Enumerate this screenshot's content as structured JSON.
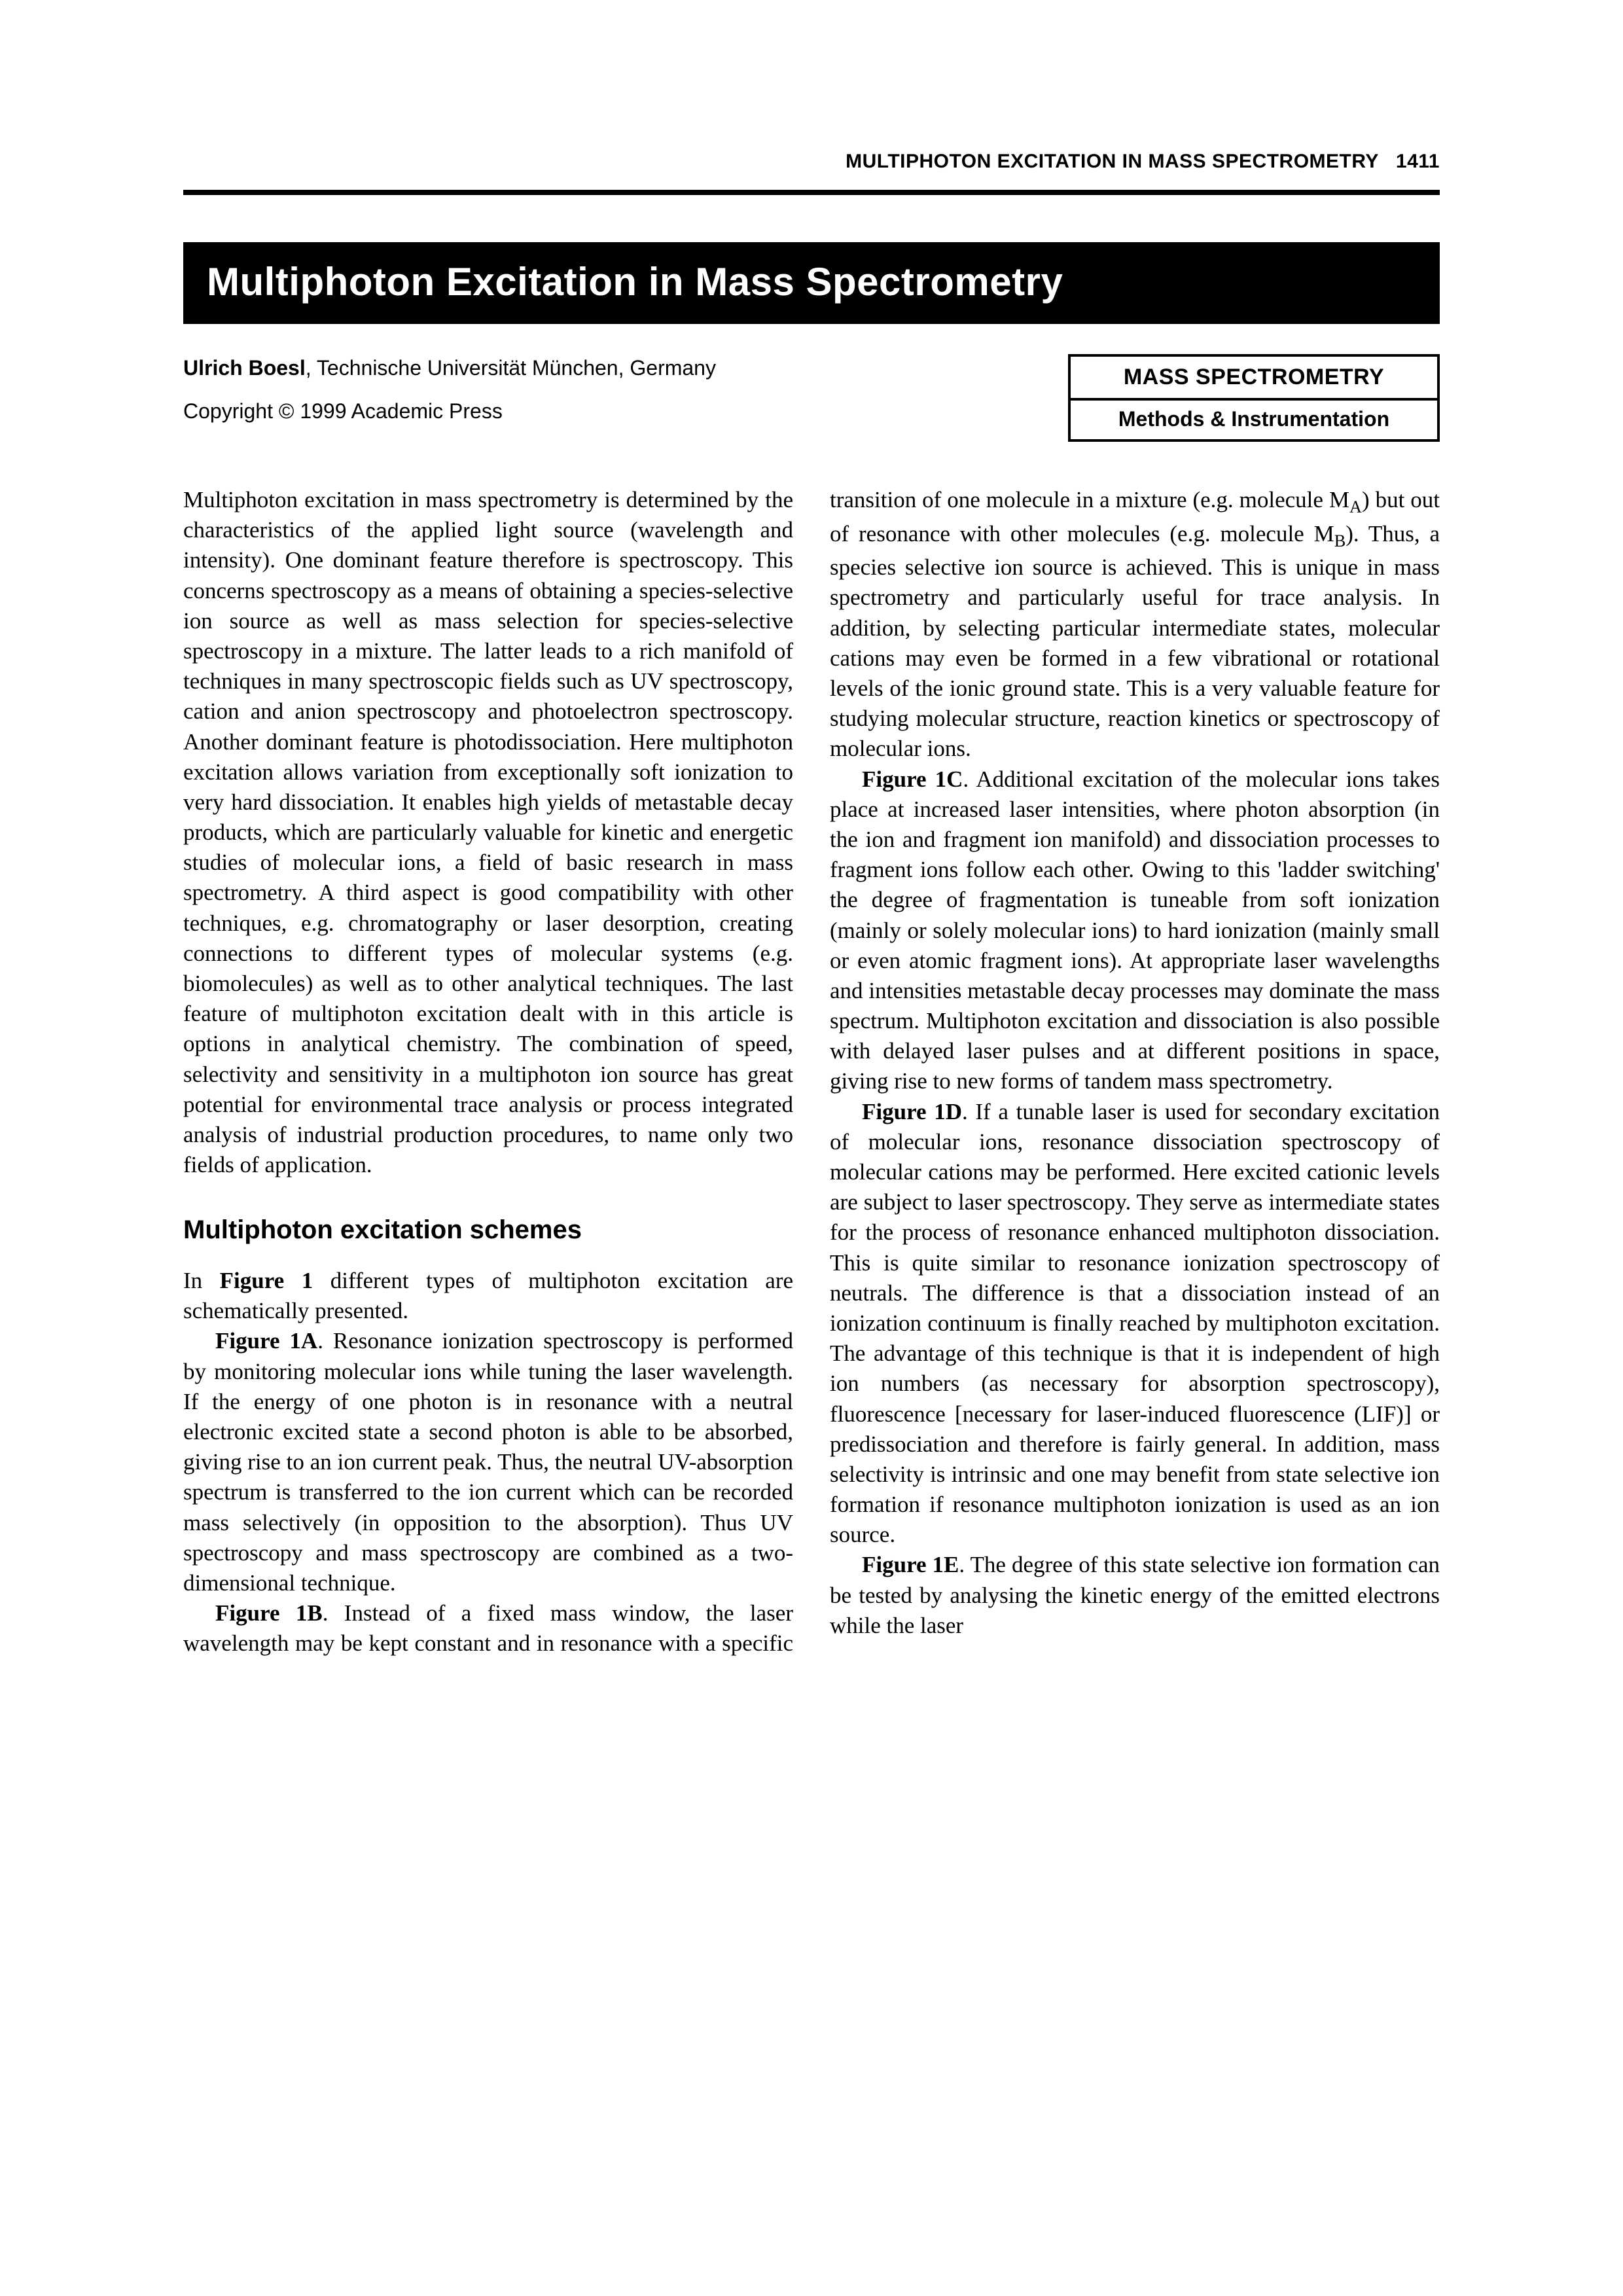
{
  "header": {
    "running": "MULTIPHOTON EXCITATION IN MASS SPECTROMETRY",
    "page_number": "1411"
  },
  "title": "Multiphoton Excitation in Mass Spectrometry",
  "author": {
    "name": "Ulrich Boesl",
    "affiliation": ", Technische Universität München, Germany"
  },
  "copyright": "Copyright © 1999 Academic Press",
  "category": {
    "top": "MASS SPECTROMETRY",
    "bottom": "Methods & Instrumentation"
  },
  "body": {
    "intro": "Multiphoton excitation in mass spectrometry is determined by the characteristics of the applied light source (wavelength and intensity). One dominant feature therefore is spectroscopy. This concerns spectroscopy as a means of obtaining a species-selective ion source as well as mass selection for species-selective spectroscopy in a mixture. The latter leads to a rich manifold of techniques in many spectroscopic fields such as UV spectroscopy, cation and anion spectroscopy and photoelectron spectroscopy. Another dominant feature is photodissociation. Here multiphoton excitation allows variation from exceptionally soft ionization to very hard dissociation. It enables high yields of metastable decay products, which are particularly valuable for kinetic and energetic studies of molecular ions, a field of basic research in mass spectrometry. A third aspect is good compatibility with other techniques, e.g. chromatography or laser desorption, creating connections to different types of molecular systems (e.g. biomolecules) as well as to other analytical techniques. The last feature of multiphoton excitation dealt with in this article is options in analytical chemistry. The combination of speed, selectivity and sensitivity in a multiphoton ion source has great potential for environmental trace analysis or process integrated analysis of industrial production procedures, to name only two fields of application.",
    "section_head": "Multiphoton excitation schemes",
    "schemes_intro_a": "In ",
    "schemes_intro_fig": "Figure 1",
    "schemes_intro_b": " different types of multiphoton excitation are schematically presented.",
    "fig1A_label": "Figure 1A",
    "fig1A": ". Resonance ionization spectroscopy is performed by monitoring molecular ions while tuning the laser wavelength. If the energy of one photon is in resonance with a neutral electronic excited state a second photon is able to be absorbed, giving rise to an ion current peak. Thus, the neutral UV-absorption spectrum is transferred to the ion current which can be recorded mass selectively (in opposition to the absorption). Thus UV spectroscopy and mass spectroscopy are combined as a two-dimensional technique.",
    "fig1B_label": "Figure 1B",
    "fig1B_a": ". Instead of a fixed mass window, the laser wavelength may be kept constant and in resonance with a specific transition of one molecule in a mixture (e.g. molecule M",
    "fig1B_subA": "A",
    "fig1B_b": ") but out of resonance with other molecules (e.g. molecule M",
    "fig1B_subB": "B",
    "fig1B_c": "). Thus, a species selective ion source is achieved. This is unique in mass spectrometry and particularly useful for trace analysis. In addition, by selecting particular intermediate states, molecular cations may even be formed in a few vibrational or rotational levels of the ionic ground state. This is a very valuable feature for studying molecular structure, reaction kinetics or spectroscopy of molecular ions.",
    "fig1C_label": "Figure 1C",
    "fig1C": ". Additional excitation of the molecular ions takes place at increased laser intensities, where photon absorption (in the ion and fragment ion manifold) and dissociation processes to fragment ions follow each other. Owing to this 'ladder switching' the degree of fragmentation is tuneable from soft ionization (mainly or solely molecular ions) to hard ionization (mainly small or even atomic fragment ions). At appropriate laser wavelengths and intensities metastable decay processes may dominate the mass spectrum. Multiphoton excitation and dissociation is also possible with delayed laser pulses and at different positions in space, giving rise to new forms of tandem mass spectrometry.",
    "fig1D_label": "Figure 1D",
    "fig1D": ". If a tunable laser is used for secondary excitation of molecular ions, resonance dissociation spectroscopy of molecular cations may be performed. Here excited cationic levels are subject to laser spectroscopy. They serve as intermediate states for the process of resonance enhanced multiphoton dissociation. This is quite similar to resonance ionization spectroscopy of neutrals. The difference is that a dissociation instead of an ionization continuum is finally reached by multiphoton excitation. The advantage of this technique is that it is independent of high ion numbers (as necessary for absorption spectroscopy), fluorescence [necessary for laser-induced fluorescence (LIF)] or predissociation and therefore is fairly general. In addition, mass selectivity is intrinsic and one may benefit from state selective ion formation if resonance multiphoton ionization is used as an ion source.",
    "fig1E_label": "Figure 1E",
    "fig1E": ". The degree of this state selective ion formation can be tested by analysing the kinetic energy of the emitted electrons while the laser"
  }
}
